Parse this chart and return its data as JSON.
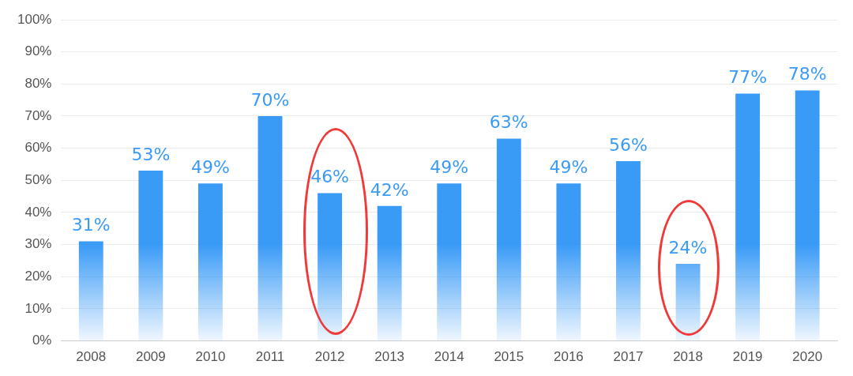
{
  "chart_data": {
    "type": "bar",
    "categories": [
      "2008",
      "2009",
      "2010",
      "2011",
      "2012",
      "2013",
      "2014",
      "2015",
      "2016",
      "2017",
      "2018",
      "2019",
      "2020"
    ],
    "values": [
      31,
      53,
      49,
      70,
      46,
      42,
      49,
      63,
      49,
      56,
      24,
      77,
      78
    ],
    "value_labels": [
      "31%",
      "53%",
      "49%",
      "70%",
      "46%",
      "42%",
      "49%",
      "63%",
      "49%",
      "56%",
      "24%",
      "77%",
      "78%"
    ],
    "color": "#3a9bf7",
    "ylim": [
      0,
      100
    ],
    "yticks": [
      {
        "value": 0,
        "label": "0%"
      },
      {
        "value": 10,
        "label": "10%"
      },
      {
        "value": 20,
        "label": "20%"
      },
      {
        "value": 30,
        "label": "30%"
      },
      {
        "value": 40,
        "label": "40%"
      },
      {
        "value": 50,
        "label": "50%"
      },
      {
        "value": 60,
        "label": "60%"
      },
      {
        "value": 70,
        "label": "70%"
      },
      {
        "value": 80,
        "label": "80%"
      },
      {
        "value": 90,
        "label": "90%"
      },
      {
        "value": 100,
        "label": "100%"
      }
    ],
    "grid": "y",
    "legend": false
  }
}
